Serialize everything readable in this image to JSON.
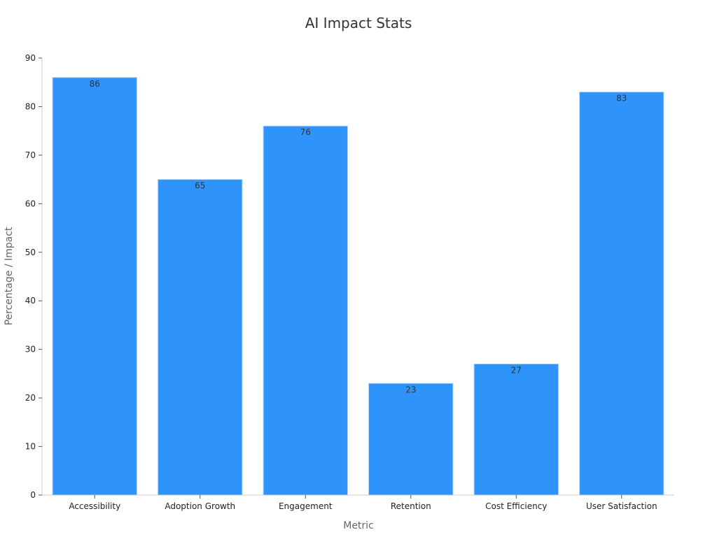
{
  "chart_data": {
    "type": "bar",
    "title": "AI Impact Stats",
    "xlabel": "Metric",
    "ylabel": "Percentage / Impact",
    "categories": [
      "Accessibility",
      "Adoption Growth",
      "Engagement",
      "Retention",
      "Cost Efficiency",
      "User Satisfaction"
    ],
    "values": [
      86,
      65,
      76,
      23,
      27,
      83
    ],
    "ylim": [
      0,
      90
    ],
    "yticks": [
      0,
      10,
      20,
      30,
      40,
      50,
      60,
      70,
      80,
      90
    ],
    "data_labels": true,
    "grid": false,
    "legend": "none",
    "bar_color": "#2e93fa",
    "bar_edge_color": "#b3d4f5"
  }
}
